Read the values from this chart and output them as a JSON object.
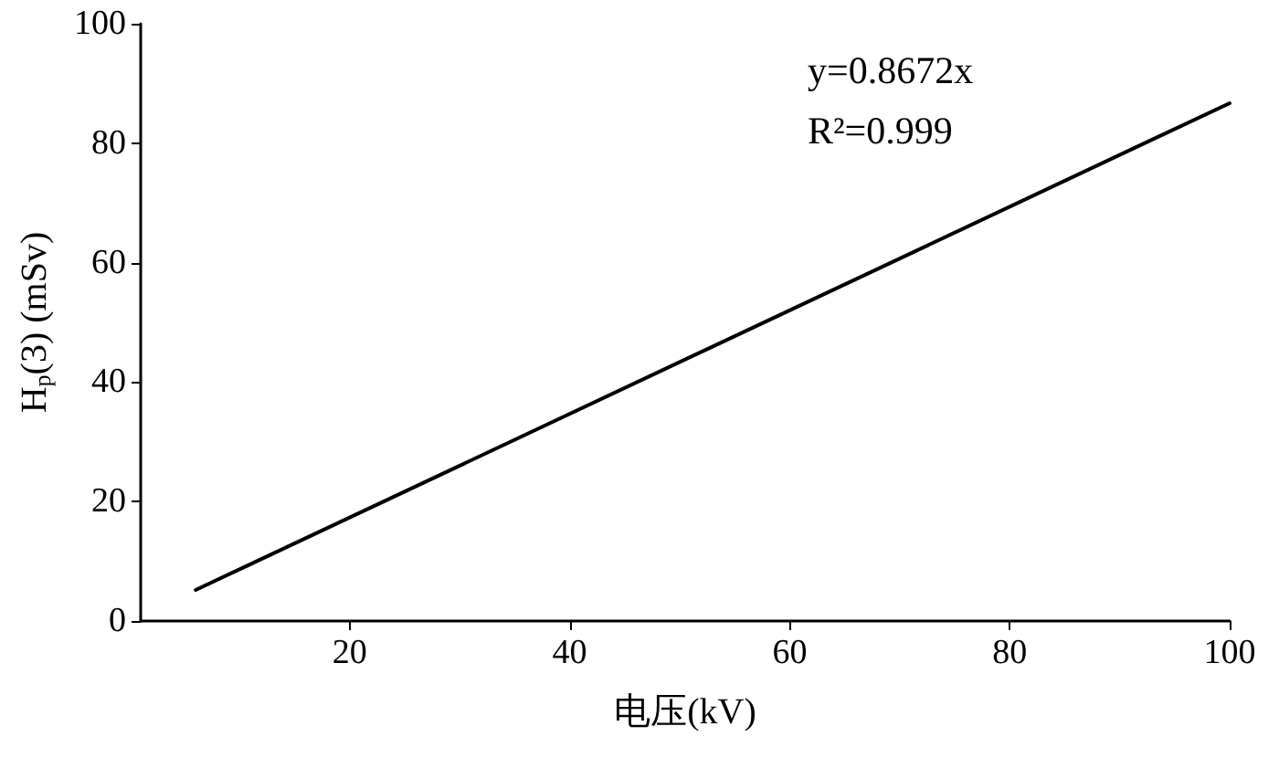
{
  "chart_data": {
    "type": "line",
    "xlabel": "电压(kV)",
    "ylabel": "H$_{p}$(3) (mSv)",
    "x": [
      6,
      100
    ],
    "series": [
      {
        "color": "#000000",
        "values": [
          5.2,
          86.7
        ]
      }
    ],
    "xlim": [
      1,
      100
    ],
    "xticks": [
      20,
      40,
      60,
      80,
      100
    ],
    "ylim": [
      0,
      100
    ],
    "yticks": [
      0,
      20,
      40,
      60,
      80,
      100
    ],
    "annotations": [
      "y=0.8672x",
      "R²=0.999"
    ],
    "grid": false,
    "marker": "none",
    "line_style": "solid"
  }
}
